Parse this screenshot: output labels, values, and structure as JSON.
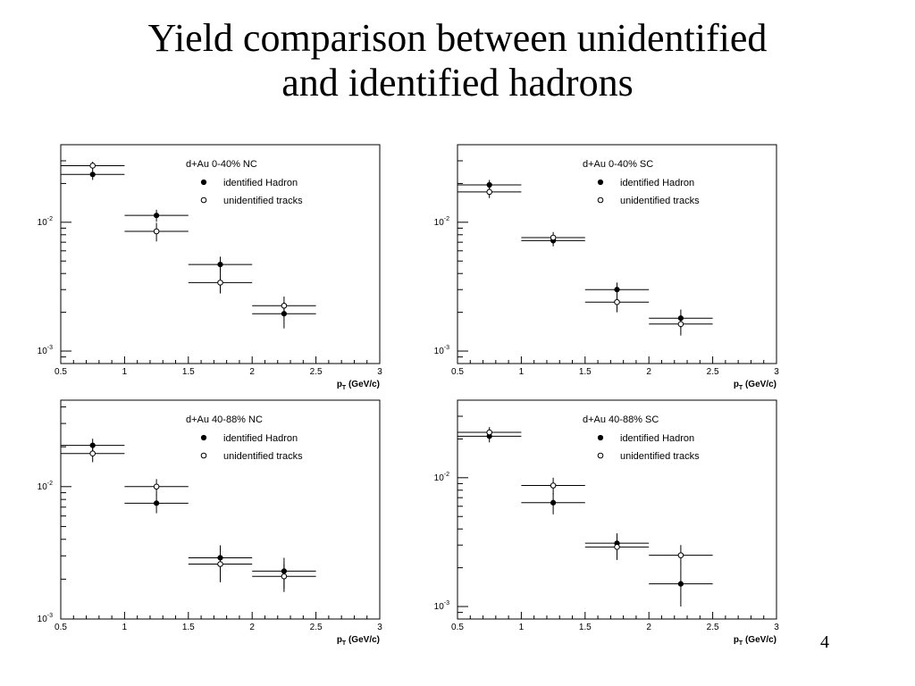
{
  "slide": {
    "title_line1": "Yield comparison between unidentified",
    "title_line2": "and identified hadrons",
    "page_number": "4"
  },
  "chart_data": [
    {
      "type": "scatter",
      "title": "d+Au 0-40% NC",
      "xlabel_main": "p",
      "xlabel_sub": "T",
      "xlabel_unit": "(GeV/c)",
      "xlim": [
        0.5,
        3
      ],
      "ylim": [
        0.0008,
        0.04
      ],
      "yscale": "log",
      "xticks": [
        "0.5",
        "1",
        "1.5",
        "2",
        "2.5",
        "3"
      ],
      "yticks": [
        {
          "base": "10",
          "exp": "-2",
          "value": 0.01
        },
        {
          "base": "10",
          "exp": "-3",
          "value": 0.001
        }
      ],
      "legend_position": "top-right",
      "series": [
        {
          "name": "identified Hadron",
          "marker": "filled-circle",
          "points": [
            {
              "x": 0.75,
              "y": 0.0235,
              "yerr": 0.0022
            },
            {
              "x": 1.25,
              "y": 0.0113,
              "yerr": 0.0012
            },
            {
              "x": 1.75,
              "y": 0.0047,
              "yerr": 0.0007
            },
            {
              "x": 2.25,
              "y": 0.00195,
              "yerr": 0.00045
            }
          ]
        },
        {
          "name": "unidentified tracks",
          "marker": "open-circle",
          "points": [
            {
              "x": 0.75,
              "y": 0.0275,
              "yerr": 0.002
            },
            {
              "x": 1.25,
              "y": 0.0085,
              "yerr": 0.0014
            },
            {
              "x": 1.75,
              "y": 0.0034,
              "yerr": 0.0006
            },
            {
              "x": 2.25,
              "y": 0.00225,
              "yerr": 0.0004
            }
          ]
        }
      ],
      "xerr": 0.25
    },
    {
      "type": "scatter",
      "title": "d+Au 0-40% SC",
      "xlabel_main": "p",
      "xlabel_sub": "T",
      "xlabel_unit": "(GeV/c)",
      "xlim": [
        0.5,
        3
      ],
      "ylim": [
        0.0008,
        0.04
      ],
      "yscale": "log",
      "xticks": [
        "0.5",
        "1",
        "1.5",
        "2",
        "2.5",
        "3"
      ],
      "yticks": [
        {
          "base": "10",
          "exp": "-2",
          "value": 0.01
        },
        {
          "base": "10",
          "exp": "-3",
          "value": 0.001
        }
      ],
      "legend_position": "top-right",
      "series": [
        {
          "name": "identified Hadron",
          "marker": "filled-circle",
          "points": [
            {
              "x": 0.75,
              "y": 0.0195,
              "yerr": 0.0018
            },
            {
              "x": 1.25,
              "y": 0.0072,
              "yerr": 0.0007
            },
            {
              "x": 1.75,
              "y": 0.003,
              "yerr": 0.0004
            },
            {
              "x": 2.25,
              "y": 0.0018,
              "yerr": 0.0003
            }
          ]
        },
        {
          "name": "unidentified tracks",
          "marker": "open-circle",
          "points": [
            {
              "x": 0.75,
              "y": 0.0172,
              "yerr": 0.0018
            },
            {
              "x": 1.25,
              "y": 0.0076,
              "yerr": 0.0008
            },
            {
              "x": 1.75,
              "y": 0.0024,
              "yerr": 0.0004
            },
            {
              "x": 2.25,
              "y": 0.00162,
              "yerr": 0.0003
            }
          ]
        }
      ],
      "xerr": 0.25
    },
    {
      "type": "scatter",
      "title": "d+Au 40-88% NC",
      "xlabel_main": "p",
      "xlabel_sub": "T",
      "xlabel_unit": "(GeV/c)",
      "xlim": [
        0.5,
        3
      ],
      "ylim": [
        0.001,
        0.045
      ],
      "yscale": "log",
      "xticks": [
        "0.5",
        "1",
        "1.5",
        "2",
        "2.5",
        "3"
      ],
      "yticks": [
        {
          "base": "10",
          "exp": "-2",
          "value": 0.01
        },
        {
          "base": "10",
          "exp": "-3",
          "value": 0.001
        }
      ],
      "legend_position": "top-right",
      "series": [
        {
          "name": "identified Hadron",
          "marker": "filled-circle",
          "points": [
            {
              "x": 0.75,
              "y": 0.0205,
              "yerr": 0.0025
            },
            {
              "x": 1.25,
              "y": 0.0075,
              "yerr": 0.0012
            },
            {
              "x": 1.75,
              "y": 0.0029,
              "yerr": 0.0007
            },
            {
              "x": 2.25,
              "y": 0.0023,
              "yerr": 0.0006
            }
          ]
        },
        {
          "name": "unidentified tracks",
          "marker": "open-circle",
          "points": [
            {
              "x": 0.75,
              "y": 0.0178,
              "yerr": 0.0025
            },
            {
              "x": 1.25,
              "y": 0.01,
              "yerr": 0.0014
            },
            {
              "x": 1.75,
              "y": 0.0026,
              "yerr": 0.0007
            },
            {
              "x": 2.25,
              "y": 0.0021,
              "yerr": 0.0005
            }
          ]
        }
      ],
      "xerr": 0.25
    },
    {
      "type": "scatter",
      "title": "d+Au 40-88% SC",
      "xlabel_main": "p",
      "xlabel_sub": "T",
      "xlabel_unit": "(GeV/c)",
      "xlim": [
        0.5,
        3
      ],
      "ylim": [
        0.0008,
        0.04
      ],
      "yscale": "log",
      "xticks": [
        "0.5",
        "1",
        "1.5",
        "2",
        "2.5",
        "3"
      ],
      "yticks": [
        {
          "base": "10",
          "exp": "-2",
          "value": 0.01
        },
        {
          "base": "10",
          "exp": "-3",
          "value": 0.001
        }
      ],
      "legend_position": "top-right",
      "series": [
        {
          "name": "identified Hadron",
          "marker": "filled-circle",
          "points": [
            {
              "x": 0.75,
              "y": 0.021,
              "yerr": 0.0022
            },
            {
              "x": 1.25,
              "y": 0.0064,
              "yerr": 0.0012
            },
            {
              "x": 1.75,
              "y": 0.0031,
              "yerr": 0.0006
            },
            {
              "x": 2.25,
              "y": 0.0015,
              "yerr": 0.0005
            }
          ]
        },
        {
          "name": "unidentified tracks",
          "marker": "open-circle",
          "points": [
            {
              "x": 0.75,
              "y": 0.0225,
              "yerr": 0.0022
            },
            {
              "x": 1.25,
              "y": 0.0087,
              "yerr": 0.0013
            },
            {
              "x": 1.75,
              "y": 0.0029,
              "yerr": 0.0006
            },
            {
              "x": 2.25,
              "y": 0.0025,
              "yerr": 0.0005
            }
          ]
        }
      ],
      "xerr": 0.25
    }
  ]
}
